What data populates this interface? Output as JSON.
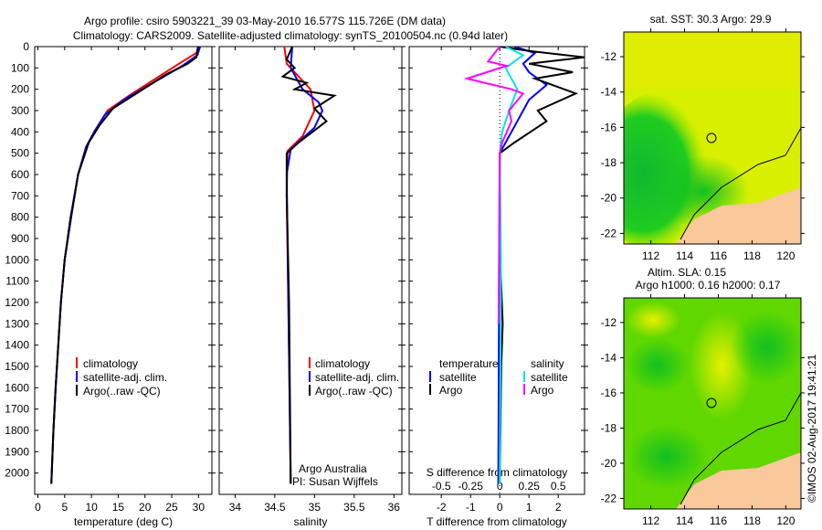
{
  "title_line1": "Argo profile: csiro 5903221_39 03-May-2010 16.577S 115.726E (DM data)",
  "title_line2": "Climatology: CARS2009. Satellite-adjusted climatology: synTS_20100504.nc (0.94d later)",
  "colors": {
    "climatology": "#ff0000",
    "satellite": "#0000ff",
    "argo": "#000000",
    "s_satellite": "#00e5e5",
    "s_argo": "#ff00ff",
    "land": "#f9c89b"
  },
  "credits": {
    "line1": "Argo Australia",
    "line2": "PI: Susan Wijffels"
  },
  "stamp": "©IMOS 02-Aug-2017 19:41:21",
  "chart_data": [
    {
      "type": "line",
      "name": "temperature",
      "xlabel": "temperature (deg C)",
      "ylabel": "",
      "xlim": [
        -0.6,
        32.5
      ],
      "ylim": [
        0,
        2100
      ],
      "xticks": [
        0,
        5,
        10,
        15,
        20,
        25,
        30
      ],
      "yticks": [
        0,
        100,
        200,
        300,
        400,
        500,
        600,
        700,
        800,
        900,
        1000,
        1100,
        1200,
        1300,
        1400,
        1500,
        1600,
        1700,
        1800,
        1900,
        2000
      ],
      "legend": [
        "climatology",
        "satellite-adj. clim.",
        "Argo(..raw -QC)"
      ],
      "series": [
        {
          "name": "climatology",
          "color": "#ff0000",
          "points": [
            [
              30,
              0
            ],
            [
              29.6,
              30
            ],
            [
              27,
              70
            ],
            [
              22,
              150
            ],
            [
              17,
              230
            ],
            [
              13,
              300
            ],
            [
              11,
              380
            ],
            [
              9,
              470
            ],
            [
              7.5,
              600
            ],
            [
              6.2,
              800
            ],
            [
              5,
              1000
            ],
            [
              4.3,
              1200
            ],
            [
              3.8,
              1400
            ],
            [
              3.3,
              1600
            ],
            [
              2.9,
              1800
            ],
            [
              2.5,
              2050
            ]
          ]
        },
        {
          "name": "satellite-adj. clim.",
          "color": "#0000ff",
          "points": [
            [
              30.3,
              0
            ],
            [
              29.8,
              40
            ],
            [
              27,
              90
            ],
            [
              21.5,
              170
            ],
            [
              16,
              250
            ],
            [
              12.5,
              320
            ],
            [
              10.5,
              400
            ],
            [
              9,
              470
            ],
            [
              7.5,
              600
            ],
            [
              6.2,
              800
            ],
            [
              5,
              1000
            ],
            [
              4.3,
              1200
            ],
            [
              3.8,
              1400
            ],
            [
              3.3,
              1600
            ],
            [
              2.9,
              1800
            ],
            [
              2.5,
              2050
            ]
          ]
        },
        {
          "name": "Argo(..raw -QC)",
          "color": "#000000",
          "points": [
            [
              29.9,
              0
            ],
            [
              29.6,
              50
            ],
            [
              28,
              80
            ],
            [
              24,
              130
            ],
            [
              19,
              210
            ],
            [
              14,
              290
            ],
            [
              11.5,
              370
            ],
            [
              9.5,
              450
            ],
            [
              7.5,
              600
            ],
            [
              6.1,
              800
            ],
            [
              5,
              1000
            ],
            [
              4.3,
              1200
            ],
            [
              3.8,
              1400
            ],
            [
              3.3,
              1600
            ],
            [
              2.9,
              1800
            ],
            [
              2.5,
              2050
            ]
          ]
        }
      ]
    },
    {
      "type": "line",
      "name": "salinity",
      "xlabel": "salinity",
      "ylabel": "",
      "xlim": [
        33.8,
        36.1
      ],
      "ylim": [
        0,
        2100
      ],
      "xticks": [
        34,
        34.5,
        35,
        35.5,
        36
      ],
      "legend": [
        "climatology",
        "satellite-adj. clim.",
        "Argo(..raw -QC)"
      ],
      "series": [
        {
          "name": "climatology",
          "color": "#ff0000",
          "points": [
            [
              34.62,
              0
            ],
            [
              34.65,
              80
            ],
            [
              34.95,
              200
            ],
            [
              35.0,
              300
            ],
            [
              34.85,
              420
            ],
            [
              34.66,
              490
            ],
            [
              34.65,
              700
            ],
            [
              34.67,
              1200
            ],
            [
              34.7,
              2050
            ]
          ]
        },
        {
          "name": "satellite-adj. clim.",
          "color": "#0000ff",
          "points": [
            [
              34.72,
              0
            ],
            [
              34.7,
              100
            ],
            [
              34.85,
              200
            ],
            [
              35.05,
              260
            ],
            [
              35.1,
              300
            ],
            [
              35.0,
              380
            ],
            [
              34.7,
              480
            ],
            [
              34.65,
              600
            ],
            [
              34.67,
              1200
            ],
            [
              34.7,
              2050
            ]
          ]
        },
        {
          "name": "Argo(..raw -QC)",
          "color": "#000000",
          "points": [
            [
              34.72,
              0
            ],
            [
              34.65,
              60
            ],
            [
              34.75,
              100
            ],
            [
              34.6,
              140
            ],
            [
              34.9,
              170
            ],
            [
              34.75,
              200
            ],
            [
              35.25,
              230
            ],
            [
              35.0,
              290
            ],
            [
              35.15,
              350
            ],
            [
              34.8,
              450
            ],
            [
              34.65,
              500
            ],
            [
              34.65,
              700
            ],
            [
              34.68,
              1200
            ],
            [
              34.7,
              2050
            ]
          ]
        }
      ]
    },
    {
      "type": "line",
      "name": "difference",
      "xlabel": "T difference from climatology",
      "x2label": "S difference from climatology",
      "xlim": [
        -3.1,
        2.9
      ],
      "ylim": [
        0,
        2100
      ],
      "xticks": [
        -2,
        -1,
        0,
        1,
        2
      ],
      "x2ticks": [
        -0.5,
        -0.25,
        0,
        0.25,
        0.5
      ],
      "s_scale": 4,
      "legend_temperature": {
        "title": "temperature",
        "items": [
          "satellite",
          "Argo"
        ]
      },
      "legend_salinity": {
        "title": "salinity",
        "items": [
          "satellite",
          "Argo"
        ]
      },
      "series": [
        {
          "name": "T satellite",
          "color": "#0000ff",
          "unit": "T",
          "points": [
            [
              0.5,
              0
            ],
            [
              1.2,
              30
            ],
            [
              0.8,
              80
            ],
            [
              1.0,
              120
            ],
            [
              1.6,
              180
            ],
            [
              1.0,
              250
            ],
            [
              0.6,
              350
            ],
            [
              0.2,
              450
            ],
            [
              0,
              500
            ],
            [
              -0.02,
              1000
            ],
            [
              -0.05,
              2050
            ]
          ]
        },
        {
          "name": "T Argo",
          "color": "#000000",
          "unit": "T",
          "points": [
            [
              0,
              0
            ],
            [
              1.0,
              20
            ],
            [
              2.9,
              50
            ],
            [
              1.0,
              80
            ],
            [
              2.5,
              120
            ],
            [
              1.2,
              150
            ],
            [
              2.6,
              220
            ],
            [
              1.3,
              300
            ],
            [
              1.6,
              350
            ],
            [
              0.5,
              450
            ],
            [
              0,
              500
            ],
            [
              0.02,
              1000
            ],
            [
              0.1,
              1300
            ],
            [
              0.05,
              1500
            ],
            [
              0,
              2050
            ]
          ]
        },
        {
          "name": "S satellite",
          "color": "#00e5e5",
          "unit": "S",
          "points": [
            [
              0.05,
              0
            ],
            [
              0.2,
              40
            ],
            [
              0.05,
              100
            ],
            [
              0.15,
              200
            ],
            [
              0.08,
              300
            ],
            [
              0.02,
              400
            ],
            [
              0,
              500
            ],
            [
              0.01,
              1000
            ],
            [
              0,
              2050
            ]
          ]
        },
        {
          "name": "S Argo",
          "color": "#ff00ff",
          "unit": "S",
          "points": [
            [
              0.0,
              0
            ],
            [
              -0.1,
              70
            ],
            [
              0.06,
              90
            ],
            [
              -0.28,
              150
            ],
            [
              0.1,
              200
            ],
            [
              0.2,
              220
            ],
            [
              0.08,
              300
            ],
            [
              0.1,
              350
            ],
            [
              0.02,
              450
            ],
            [
              0,
              500
            ],
            [
              -0.01,
              1300
            ]
          ]
        }
      ]
    },
    {
      "type": "heatmap",
      "name": "sst-map",
      "title": "sat. SST: 30.3 Argo: 29.9",
      "xlim": [
        110.4,
        120.9
      ],
      "ylim": [
        -22.6,
        -10.6
      ],
      "xticks": [
        112,
        114,
        116,
        118,
        120
      ],
      "yticks": [
        -12,
        -14,
        -16,
        -18,
        -20,
        -22
      ],
      "float_position": [
        115.726,
        -16.577
      ]
    },
    {
      "type": "heatmap",
      "name": "sla-map",
      "title": "Altim. SLA: 0.15",
      "subtitle": "Argo h1000: 0.16 h2000: 0.17",
      "xlim": [
        110.4,
        120.9
      ],
      "ylim": [
        -22.6,
        -10.6
      ],
      "xticks": [
        112,
        114,
        116,
        118,
        120
      ],
      "yticks": [
        -12,
        -14,
        -16,
        -18,
        -20,
        -22
      ],
      "float_position": [
        115.726,
        -16.577
      ]
    }
  ]
}
